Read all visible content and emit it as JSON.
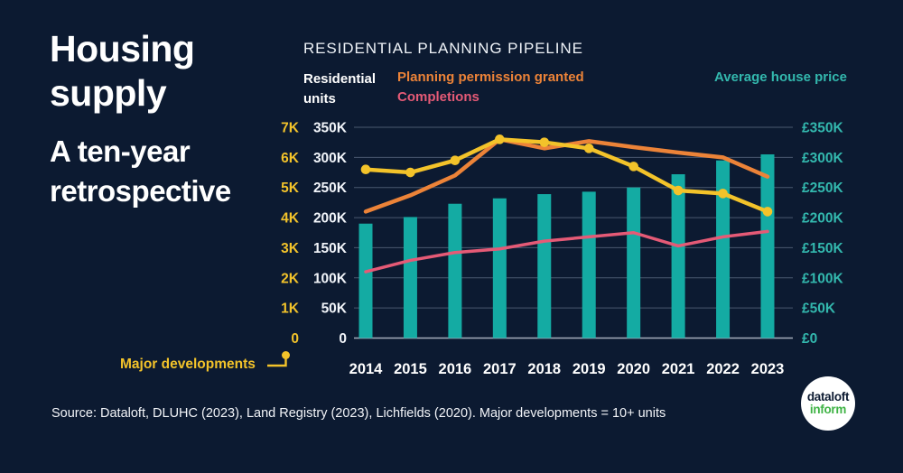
{
  "colors": {
    "background": "#0c1a31",
    "yellow": "#f3c32a",
    "orange": "#ec8338",
    "pink": "#e55a76",
    "teal_bar": "#14aba3",
    "teal_text": "#33b8ae",
    "white": "#ffffff",
    "logo_green": "#3fb345"
  },
  "left_panel": {
    "title": "Housing supply",
    "subtitle": "A ten-year retrospective"
  },
  "chart_data": {
    "type": "combo-bar-line",
    "title": "RESIDENTIAL PLANNING PIPELINE",
    "x_axis": {
      "categories": [
        "2014",
        "2015",
        "2016",
        "2017",
        "2018",
        "2019",
        "2020",
        "2021",
        "2022",
        "2023"
      ]
    },
    "axes": {
      "far_left": {
        "label": "Major developments",
        "color": "#f3c32a",
        "range_thousands": [
          0,
          7
        ],
        "ticks": [
          "7K",
          "6K",
          "5K",
          "4K",
          "3K",
          "2K",
          "1K",
          "0"
        ]
      },
      "left": {
        "label": "Residential units",
        "color": "#f2f5fa",
        "range_units": [
          0,
          350000
        ],
        "ticks": [
          "350K",
          "300K",
          "250K",
          "200K",
          "150K",
          "100K",
          "50K",
          "0"
        ]
      },
      "right": {
        "label": "Average house price",
        "color": "#33b8ae",
        "range_gbp": [
          0,
          350000
        ],
        "ticks": [
          "£350K",
          "£300K",
          "£250K",
          "£200K",
          "£150K",
          "£100K",
          "£50K",
          "£0"
        ]
      }
    },
    "series": [
      {
        "key": "avg_house_price",
        "name": "Average house price",
        "type": "bar",
        "axis": "right",
        "unit": "GBP thousands",
        "color": "#14aba3",
        "values": [
          190,
          201,
          223,
          232,
          239,
          243,
          250,
          272,
          295,
          305
        ]
      },
      {
        "key": "planning_permission_granted",
        "name": "Planning permission granted",
        "type": "line",
        "axis": "left",
        "unit": "thousand units",
        "color": "#ec8338",
        "values": [
          210,
          237,
          270,
          330,
          315,
          327,
          317,
          308,
          300,
          268
        ]
      },
      {
        "key": "completions",
        "name": "Completions",
        "type": "line",
        "axis": "left",
        "unit": "thousand units",
        "color": "#e55a76",
        "values": [
          110,
          129,
          142,
          148,
          161,
          168,
          175,
          153,
          168,
          177
        ]
      },
      {
        "key": "major_developments",
        "name": "Major developments",
        "type": "line-markers",
        "axis": "far_left",
        "unit": "thousand developments",
        "color": "#f3c32a",
        "values": [
          5.6,
          5.5,
          5.9,
          6.6,
          6.5,
          6.3,
          5.7,
          4.9,
          4.8,
          4.2
        ]
      }
    ],
    "legend_position": "top",
    "grid": "horizontal"
  },
  "footer": {
    "source_text": "Source: Dataloft, DLUHC (2023), Land Registry (2023), Lichfields (2020). Major developments = 10+ units"
  },
  "logo": {
    "line1": "dataloft",
    "line2": "inform"
  }
}
